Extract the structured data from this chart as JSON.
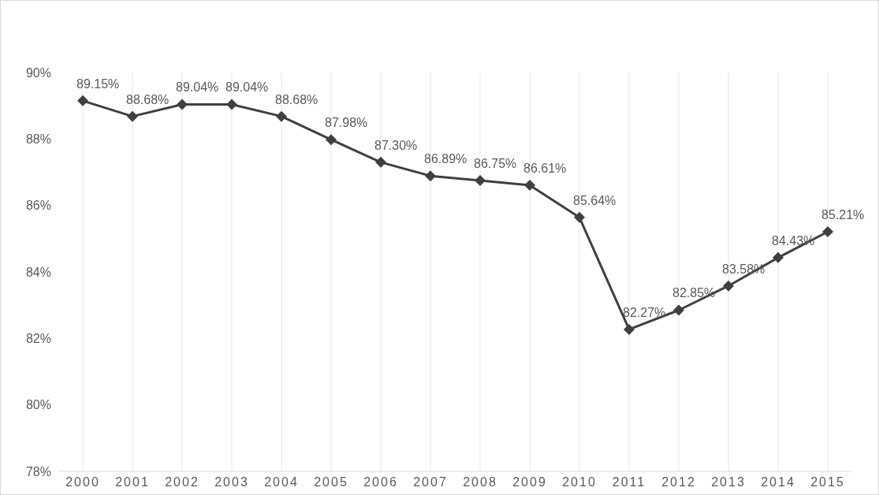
{
  "chart_data": {
    "type": "line",
    "categories": [
      "2000",
      "2001",
      "2002",
      "2003",
      "2004",
      "2005",
      "2006",
      "2007",
      "2008",
      "2009",
      "2010",
      "2011",
      "2012",
      "2013",
      "2014",
      "2015"
    ],
    "series": [
      {
        "color": "#404040",
        "values": [
          89.15,
          88.68,
          89.04,
          89.04,
          88.68,
          87.98,
          87.3,
          86.89,
          86.75,
          86.61,
          85.64,
          82.27,
          82.85,
          83.58,
          84.43,
          85.21
        ],
        "value_labels": [
          "89.15%",
          "88.68%",
          "89.04%",
          "89.04%",
          "88.68%",
          "87.98%",
          "87.30%",
          "86.89%",
          "86.75%",
          "86.61%",
          "85.64%",
          "82.27%",
          "82.85%",
          "83.58%",
          "84.43%",
          "85.21%"
        ]
      }
    ],
    "ylim": [
      78,
      90
    ],
    "yticks": [
      {
        "value": 78,
        "label": "78%"
      },
      {
        "value": 80,
        "label": "80%"
      },
      {
        "value": 82,
        "label": "82%"
      },
      {
        "value": 84,
        "label": "84%"
      },
      {
        "value": 86,
        "label": "86%"
      },
      {
        "value": 88,
        "label": "88%"
      },
      {
        "value": 90,
        "label": "90%"
      }
    ],
    "grid": "x",
    "marker": "diamond",
    "line_style": "solid"
  }
}
